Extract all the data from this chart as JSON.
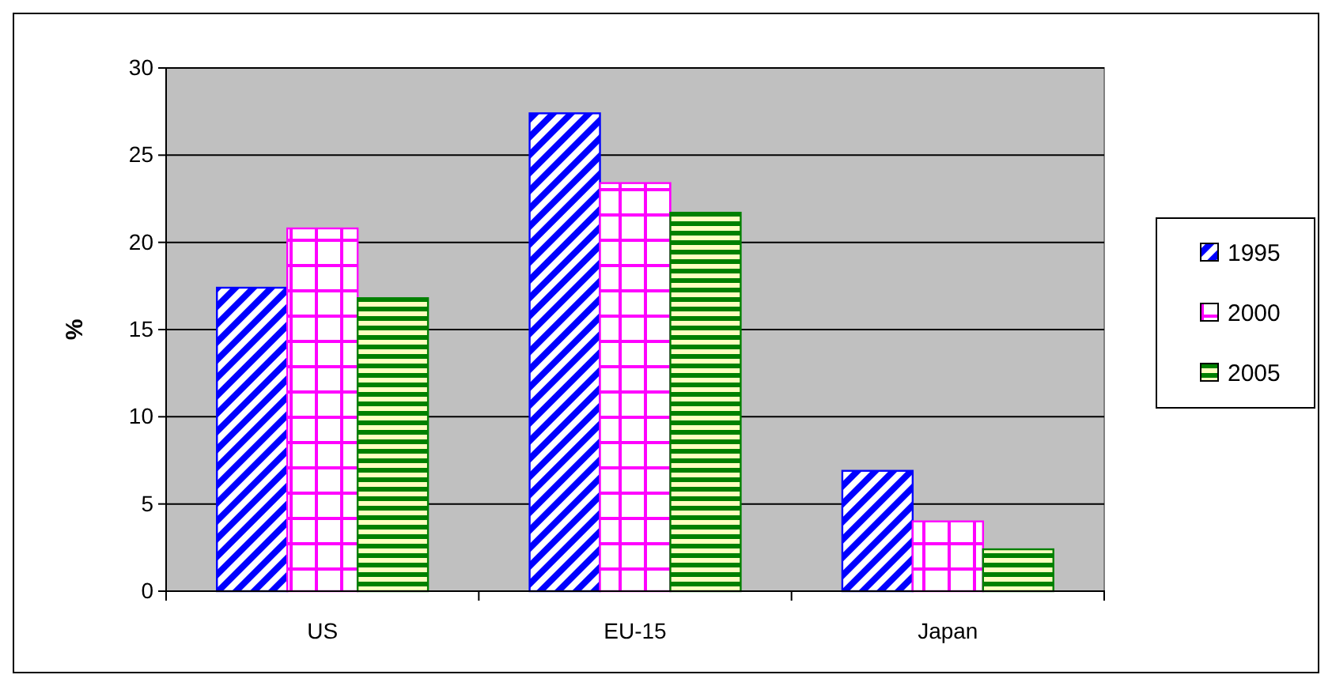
{
  "chart_data": {
    "type": "bar",
    "ylabel": "%",
    "categories": [
      "US",
      "EU-15",
      "Japan"
    ],
    "series": [
      {
        "name": "1995",
        "color": "#0000ff",
        "values": [
          17.4,
          27.4,
          6.9
        ]
      },
      {
        "name": "2000",
        "color": "#ff00ff",
        "values": [
          20.8,
          23.4,
          4.0
        ]
      },
      {
        "name": "2005",
        "color": "#008000",
        "values": [
          16.8,
          21.7,
          2.4
        ]
      }
    ],
    "ylim": [
      0,
      30
    ],
    "yticks": [
      0,
      5,
      10,
      15,
      20,
      25,
      30
    ],
    "grid": "y",
    "legend": "right"
  }
}
